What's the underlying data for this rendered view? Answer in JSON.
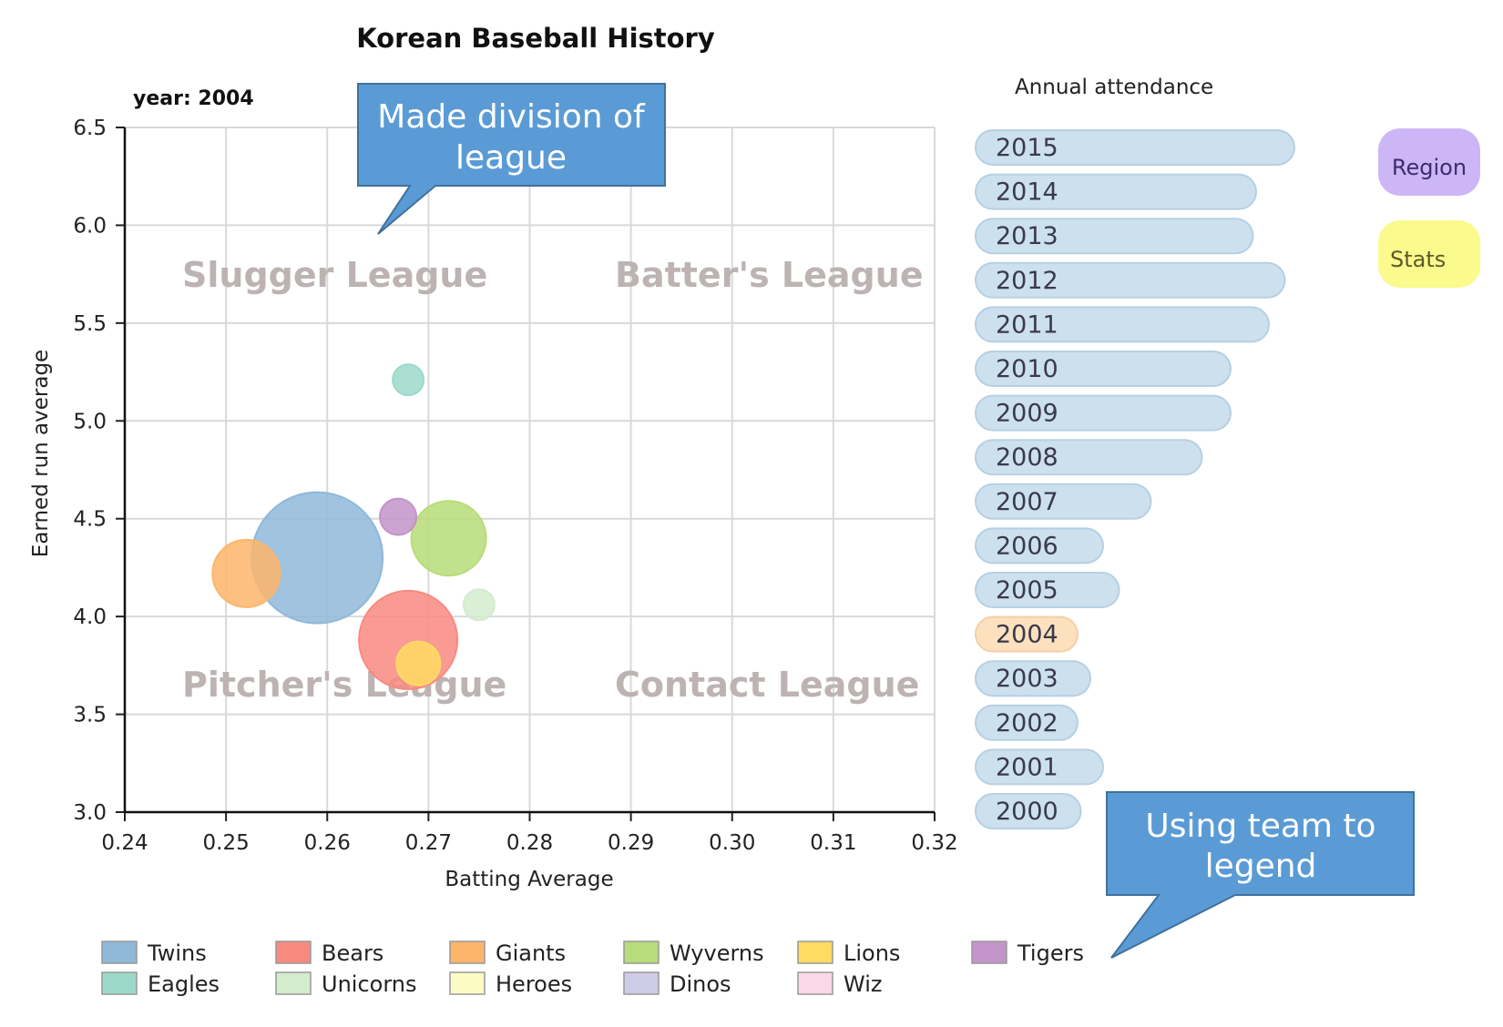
{
  "title": "Korean Baseball History",
  "year_label": "year: 2004",
  "callouts": {
    "division": "Made division of league",
    "division_lines": [
      "Made division of",
      "league"
    ],
    "legend": "Using team to legend",
    "legend_lines": [
      "Using team to",
      "legend"
    ],
    "color": "#5b9bd5"
  },
  "buttons": {
    "region": {
      "label": "Region",
      "color": "#cdb6f5"
    },
    "stats": {
      "label": "Stats",
      "color": "#fbfa8d"
    }
  },
  "quadrants": [
    "Slugger League",
    "Batter's League",
    "Pitcher's League",
    "Contact League"
  ],
  "chart_data": [
    {
      "type": "scatter",
      "title": "Korean Baseball History",
      "subtitle": "year: 2004",
      "xlabel": "Batting Average",
      "ylabel": "Earned run average",
      "xlim": [
        0.24,
        0.32
      ],
      "ylim": [
        3.0,
        6.5
      ],
      "xticks": [
        "0.24",
        "0.25",
        "0.26",
        "0.27",
        "0.28",
        "0.29",
        "0.30",
        "0.31",
        "0.32"
      ],
      "yticks": [
        "3.0",
        "3.5",
        "4.0",
        "4.5",
        "5.0",
        "5.5",
        "6.0",
        "6.5"
      ],
      "grid": true,
      "legend_position": "bottom",
      "points": [
        {
          "name": "Twins",
          "x": 0.259,
          "y": 4.3,
          "size": 72,
          "color": "#8fb8d9"
        },
        {
          "name": "Bears",
          "x": 0.268,
          "y": 3.88,
          "size": 54,
          "color": "#f98a80"
        },
        {
          "name": "Giants",
          "x": 0.252,
          "y": 4.22,
          "size": 37,
          "color": "#fdb56b"
        },
        {
          "name": "Wyverns",
          "x": 0.272,
          "y": 4.4,
          "size": 41,
          "color": "#b7dc79"
        },
        {
          "name": "Lions",
          "x": 0.269,
          "y": 3.76,
          "size": 24,
          "color": "#fedb62"
        },
        {
          "name": "Tigers",
          "x": 0.267,
          "y": 4.51,
          "size": 20,
          "color": "#c394c9"
        },
        {
          "name": "Eagles",
          "x": 0.268,
          "y": 5.21,
          "size": 17,
          "color": "#9cd9c9"
        },
        {
          "name": "Unicorns",
          "x": 0.275,
          "y": 4.06,
          "size": 17,
          "color": "#d3ecce"
        }
      ],
      "legend": [
        {
          "name": "Twins",
          "color": "#8fb8d9"
        },
        {
          "name": "Bears",
          "color": "#f98a80"
        },
        {
          "name": "Giants",
          "color": "#fdb56b"
        },
        {
          "name": "Wyverns",
          "color": "#b7dc79"
        },
        {
          "name": "Lions",
          "color": "#fedb62"
        },
        {
          "name": "Tigers",
          "color": "#c394c9"
        },
        {
          "name": "Eagles",
          "color": "#9cd9c9"
        },
        {
          "name": "Unicorns",
          "color": "#d3ecce"
        },
        {
          "name": "Heroes",
          "color": "#fdfbc5"
        },
        {
          "name": "Dinos",
          "color": "#cdcbe5"
        },
        {
          "name": "Wiz",
          "color": "#fbd8e8"
        }
      ]
    },
    {
      "type": "bar",
      "title": "Annual attendance",
      "orientation": "horizontal",
      "categories": [
        "2015",
        "2014",
        "2013",
        "2012",
        "2011",
        "2010",
        "2009",
        "2008",
        "2007",
        "2006",
        "2005",
        "2004",
        "2003",
        "2002",
        "2001",
        "2000"
      ],
      "values": [
        100,
        88,
        87,
        97,
        92,
        80,
        80,
        71,
        55,
        40,
        45,
        32,
        36,
        32,
        40,
        33
      ],
      "selected": "2004",
      "bar_color": "#cce0ee",
      "selected_color": "#fde0be"
    }
  ]
}
